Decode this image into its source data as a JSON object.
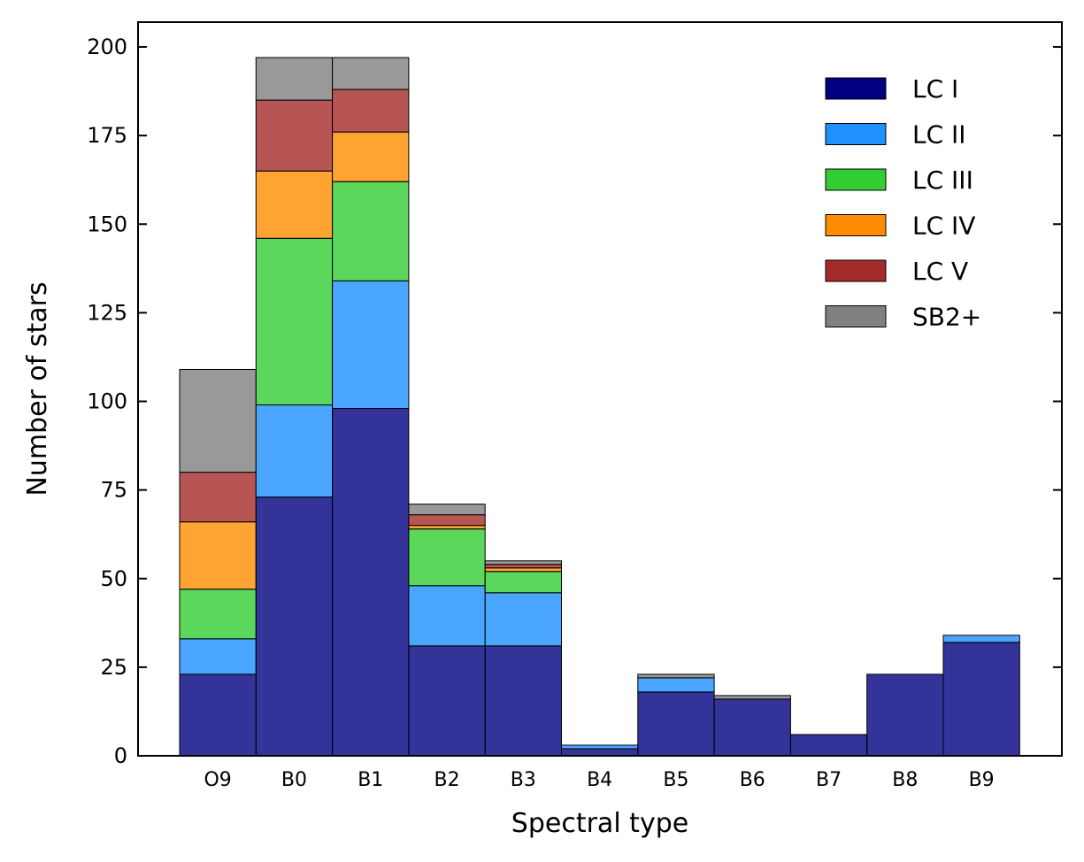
{
  "chart_data": {
    "type": "bar",
    "stacked": true,
    "title": "",
    "xlabel": "Spectral type",
    "ylabel": "Number of stars",
    "categories": [
      "O9",
      "B0",
      "B1",
      "B2",
      "B3",
      "B4",
      "B5",
      "B6",
      "B7",
      "B8",
      "B9"
    ],
    "ylim": [
      0,
      207
    ],
    "yticks": [
      0,
      25,
      50,
      75,
      100,
      125,
      150,
      175,
      200
    ],
    "legend_position": "top-right",
    "series": [
      {
        "name": "LC I",
        "color": "#000080",
        "values": [
          23,
          73,
          98,
          31,
          31,
          2,
          18,
          16,
          6,
          23,
          32
        ]
      },
      {
        "name": "LC II",
        "color": "#1e90ff",
        "values": [
          10,
          26,
          36,
          17,
          15,
          1,
          4,
          0,
          0,
          0,
          2
        ]
      },
      {
        "name": "LC III",
        "color": "#32cd32",
        "values": [
          14,
          47,
          28,
          16,
          6,
          0,
          0,
          0,
          0,
          0,
          0
        ]
      },
      {
        "name": "LC IV",
        "color": "#ff8c00",
        "values": [
          19,
          19,
          14,
          1,
          1,
          0,
          0,
          0,
          0,
          0,
          0
        ]
      },
      {
        "name": "LC V",
        "color": "#a52a2a",
        "values": [
          14,
          20,
          12,
          3,
          1,
          0,
          0,
          0,
          0,
          0,
          0
        ]
      },
      {
        "name": "SB2+",
        "color": "#808080",
        "values": [
          29,
          12,
          9,
          3,
          1,
          0,
          1,
          1,
          0,
          0,
          0
        ]
      }
    ]
  }
}
